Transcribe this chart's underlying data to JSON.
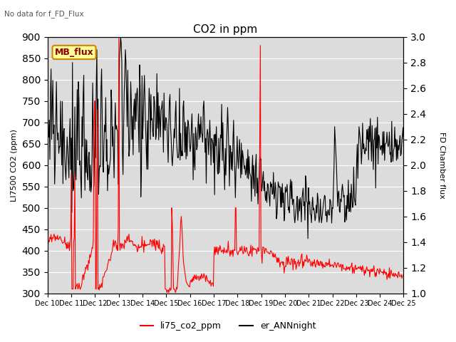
{
  "title": "CO2 in ppm",
  "top_left_text": "No data for f_FD_Flux",
  "ylabel_left": "LI7500 CO2 (ppm)",
  "ylabel_right": "FD Chamber flux",
  "ylim_left": [
    300,
    900
  ],
  "ylim_right": [
    1.0,
    3.0
  ],
  "yticks_left": [
    300,
    350,
    400,
    450,
    500,
    550,
    600,
    650,
    700,
    750,
    800,
    850,
    900
  ],
  "yticks_right": [
    1.0,
    1.2,
    1.4,
    1.6,
    1.8,
    2.0,
    2.2,
    2.4,
    2.6,
    2.8,
    3.0
  ],
  "xtick_labels": [
    "Dec 10",
    "Dec 11",
    "Dec 12",
    "Dec 13",
    "Dec 14",
    "Dec 15",
    "Dec 16",
    "Dec 17",
    "Dec 18",
    "Dec 19",
    "Dec 20",
    "Dec 21",
    "Dec 22",
    "Dec 23",
    "Dec 24",
    "Dec 25"
  ],
  "color_red": "#ff0000",
  "color_black": "#000000",
  "bg_color": "#dcdcdc",
  "legend_labels": [
    "li75_co2_ppm",
    "er_ANNnight"
  ],
  "mb_flux_box_color": "#ffff99",
  "mb_flux_box_edge": "#cc8800",
  "line_lw_red": 0.8,
  "line_lw_black": 0.8,
  "figsize": [
    6.4,
    4.8
  ],
  "dpi": 100
}
